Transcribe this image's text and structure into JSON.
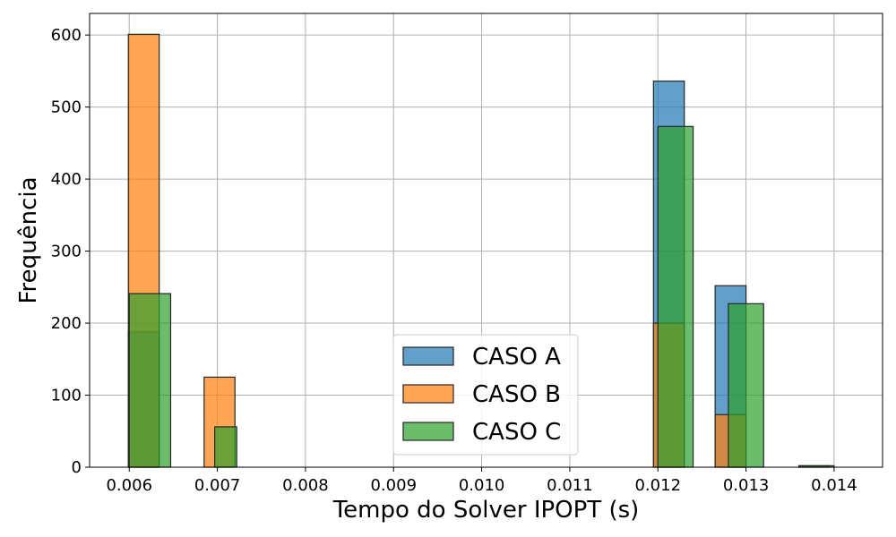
{
  "chart_data": {
    "type": "bar",
    "histogram": true,
    "xlabel": "Tempo do Solver IPOPT (s)",
    "ylabel": "Frequência",
    "xlim": [
      0.00555,
      0.01455
    ],
    "ylim": [
      0,
      630
    ],
    "xticks": [
      0.006,
      0.007,
      0.008,
      0.009,
      0.01,
      0.011,
      0.012,
      0.013,
      0.014
    ],
    "xtick_labels": [
      "0.006",
      "0.007",
      "0.008",
      "0.009",
      "0.010",
      "0.011",
      "0.012",
      "0.013",
      "0.014"
    ],
    "yticks": [
      0,
      100,
      200,
      300,
      400,
      500,
      600
    ],
    "ytick_labels": [
      "0",
      "100",
      "200",
      "300",
      "400",
      "500",
      "600"
    ],
    "grid": true,
    "legend_position": "bottom-center",
    "series": [
      {
        "name": "CASO A",
        "color": "#1f77b4",
        "opacity": 0.7,
        "bins": [
          {
            "x0": 0.00599,
            "x1": 0.00634,
            "value": 188
          },
          {
            "x0": 0.01195,
            "x1": 0.0123,
            "value": 536
          },
          {
            "x0": 0.01265,
            "x1": 0.013,
            "value": 252
          },
          {
            "x0": 0.0136,
            "x1": 0.01395,
            "value": 2
          }
        ]
      },
      {
        "name": "CASO B",
        "color": "#ff7f0e",
        "opacity": 0.7,
        "bins": [
          {
            "x0": 0.00599,
            "x1": 0.00634,
            "value": 601
          },
          {
            "x0": 0.00685,
            "x1": 0.0072,
            "value": 125
          },
          {
            "x0": 0.01195,
            "x1": 0.0123,
            "value": 200
          },
          {
            "x0": 0.01265,
            "x1": 0.013,
            "value": 73
          }
        ]
      },
      {
        "name": "CASO C",
        "color": "#2ca02c",
        "opacity": 0.7,
        "bins": [
          {
            "x0": 0.006,
            "x1": 0.00647,
            "value": 241
          },
          {
            "x0": 0.00697,
            "x1": 0.00722,
            "value": 56
          },
          {
            "x0": 0.012,
            "x1": 0.0124,
            "value": 473
          },
          {
            "x0": 0.0128,
            "x1": 0.0132,
            "value": 227
          },
          {
            "x0": 0.0136,
            "x1": 0.014,
            "value": 2
          }
        ]
      }
    ]
  }
}
